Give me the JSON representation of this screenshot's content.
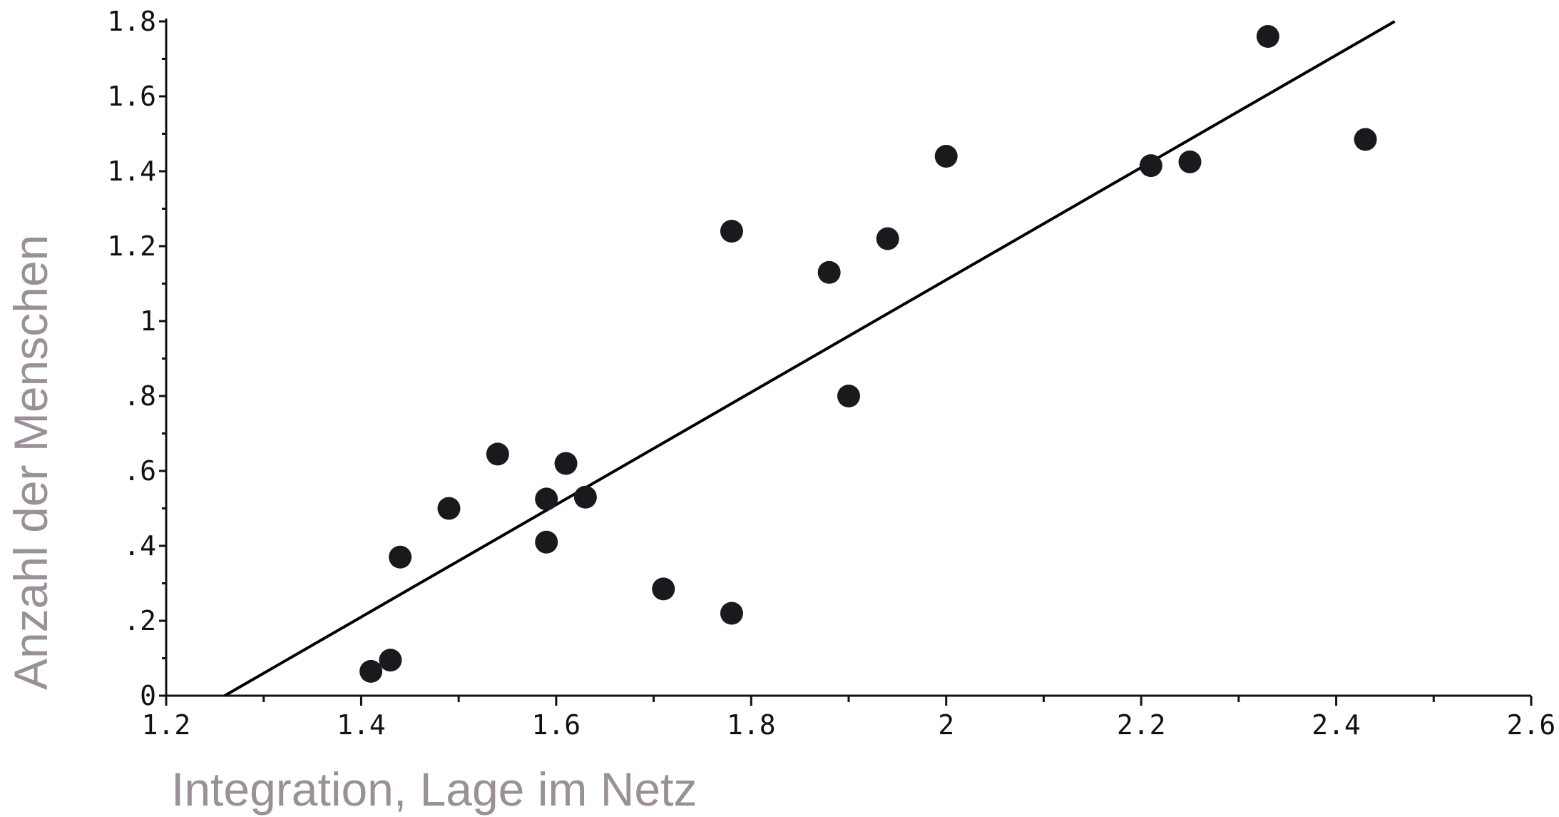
{
  "colors": {
    "axis": "#111111",
    "point": "#1a1a1e",
    "line": "#000000",
    "axis_title": "#9a9097"
  },
  "chart_data": {
    "type": "scatter",
    "title": "",
    "xlabel": "Integration, Lage im Netz",
    "ylabel": "Anzahl der Menschen",
    "xlim": [
      1.2,
      2.6
    ],
    "ylim": [
      0,
      1.8
    ],
    "x_ticks": [
      1.2,
      1.4,
      1.6,
      1.8,
      2.0,
      2.2,
      2.4,
      2.6
    ],
    "x_tick_labels": [
      "1.2",
      "1.4",
      "1.6",
      "1.8",
      "2",
      "2.2",
      "2.4",
      "2.6"
    ],
    "y_ticks": [
      0,
      0.2,
      0.4,
      0.6,
      0.8,
      1.0,
      1.2,
      1.4,
      1.6,
      1.8
    ],
    "y_tick_labels": [
      "0",
      ".2",
      ".4",
      ".6",
      ".8",
      "1",
      "1.2",
      "1.4",
      "1.6",
      "1.8"
    ],
    "grid": false,
    "points": [
      {
        "x": 1.41,
        "y": 0.065
      },
      {
        "x": 1.43,
        "y": 0.095
      },
      {
        "x": 1.44,
        "y": 0.37
      },
      {
        "x": 1.49,
        "y": 0.5
      },
      {
        "x": 1.54,
        "y": 0.645
      },
      {
        "x": 1.59,
        "y": 0.525
      },
      {
        "x": 1.59,
        "y": 0.41
      },
      {
        "x": 1.61,
        "y": 0.62
      },
      {
        "x": 1.63,
        "y": 0.53
      },
      {
        "x": 1.71,
        "y": 0.285
      },
      {
        "x": 1.78,
        "y": 1.24
      },
      {
        "x": 1.78,
        "y": 0.22
      },
      {
        "x": 1.88,
        "y": 1.13
      },
      {
        "x": 1.9,
        "y": 0.8
      },
      {
        "x": 1.94,
        "y": 1.22
      },
      {
        "x": 2.0,
        "y": 1.44
      },
      {
        "x": 2.21,
        "y": 1.415
      },
      {
        "x": 2.25,
        "y": 1.425
      },
      {
        "x": 2.33,
        "y": 1.76
      },
      {
        "x": 2.43,
        "y": 1.485
      }
    ],
    "fit_line": {
      "x": [
        1.26,
        2.46
      ],
      "y": [
        0.0,
        1.8
      ]
    }
  }
}
